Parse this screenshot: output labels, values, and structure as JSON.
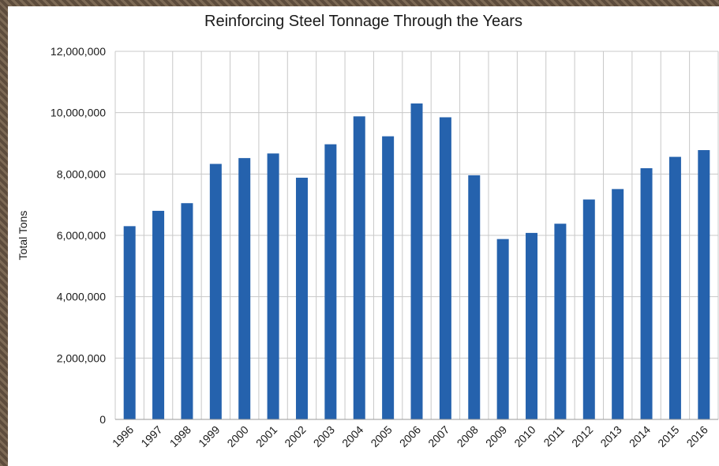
{
  "chart_data": {
    "type": "bar",
    "title": "Reinforcing Steel Tonnage Through the Years",
    "xlabel": "",
    "ylabel": "Total Tons",
    "ylim": [
      0,
      12000000
    ],
    "yticks": [
      "0",
      "2,000,000",
      "4,000,000",
      "6,000,000",
      "8,000,000",
      "10,000,000",
      "12,000,000"
    ],
    "grid": true,
    "categories": [
      "1996",
      "1997",
      "1998",
      "1999",
      "2000",
      "2001",
      "2002",
      "2003",
      "2004",
      "2005",
      "2006",
      "2007",
      "2008",
      "2009",
      "2010",
      "2011",
      "2012",
      "2013",
      "2014",
      "2015",
      "2016"
    ],
    "values": [
      6300000,
      6800000,
      7050000,
      8330000,
      8520000,
      8670000,
      7880000,
      8970000,
      9880000,
      9230000,
      10300000,
      9850000,
      7960000,
      5880000,
      6080000,
      6380000,
      7170000,
      7510000,
      8190000,
      8560000,
      8780000
    ],
    "bar_color": "#2562ad"
  }
}
